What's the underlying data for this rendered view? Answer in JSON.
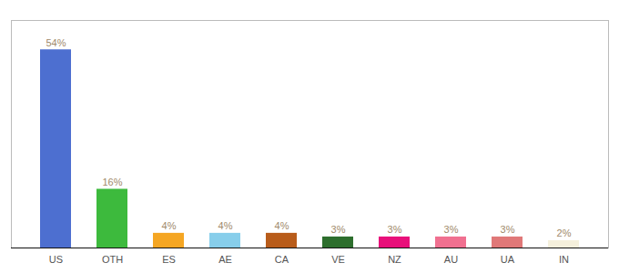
{
  "chart_data": {
    "type": "bar",
    "categories": [
      "US",
      "OTH",
      "ES",
      "AE",
      "CA",
      "VE",
      "NZ",
      "AU",
      "UA",
      "IN"
    ],
    "values": [
      54,
      16,
      4,
      4,
      4,
      3,
      3,
      3,
      3,
      2
    ],
    "value_labels": [
      "54%",
      "16%",
      "4%",
      "4%",
      "4%",
      "3%",
      "3%",
      "3%",
      "3%",
      "2%"
    ],
    "colors": [
      "#4d6fd0",
      "#3dba3d",
      "#f5a623",
      "#87ceeb",
      "#b85c1a",
      "#2d6e2d",
      "#e8107a",
      "#f07090",
      "#e07878",
      "#f5f0dc"
    ],
    "ylim": [
      0,
      62
    ],
    "grid": false,
    "data_labels": true,
    "tick_labels": "x"
  }
}
